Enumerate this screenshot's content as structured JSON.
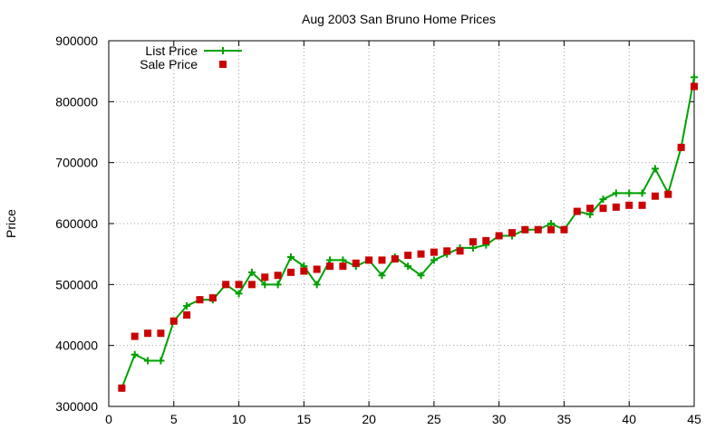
{
  "chart_data": {
    "type": "line",
    "title": "Aug 2003 San Bruno Home Prices",
    "xlabel": "",
    "ylabel": "Price",
    "xlim": [
      0,
      45
    ],
    "ylim": [
      300000,
      900000
    ],
    "xticks": [
      0,
      5,
      10,
      15,
      20,
      25,
      30,
      35,
      40,
      45
    ],
    "yticks": [
      300000,
      400000,
      500000,
      600000,
      700000,
      800000,
      900000
    ],
    "grid": true,
    "legend_position": "top-left",
    "series": [
      {
        "name": "List Price",
        "style": "line-with-plus-markers",
        "color": "#00a000",
        "points": [
          [
            1,
            330000
          ],
          [
            2,
            385000
          ],
          [
            3,
            375000
          ],
          [
            4,
            375000
          ],
          [
            5,
            440000
          ],
          [
            6,
            465000
          ],
          [
            7,
            475000
          ],
          [
            8,
            475000
          ],
          [
            9,
            500000
          ],
          [
            10,
            485000
          ],
          [
            11,
            520000
          ],
          [
            12,
            500000
          ],
          [
            13,
            500000
          ],
          [
            14,
            545000
          ],
          [
            15,
            530000
          ],
          [
            16,
            500000
          ],
          [
            17,
            540000
          ],
          [
            18,
            540000
          ],
          [
            19,
            530000
          ],
          [
            20,
            540000
          ],
          [
            21,
            515000
          ],
          [
            22,
            545000
          ],
          [
            23,
            530000
          ],
          [
            24,
            515000
          ],
          [
            25,
            540000
          ],
          [
            26,
            550000
          ],
          [
            27,
            560000
          ],
          [
            28,
            560000
          ],
          [
            29,
            565000
          ],
          [
            30,
            580000
          ],
          [
            31,
            580000
          ],
          [
            32,
            590000
          ],
          [
            33,
            590000
          ],
          [
            34,
            600000
          ],
          [
            35,
            590000
          ],
          [
            36,
            620000
          ],
          [
            37,
            615000
          ],
          [
            38,
            640000
          ],
          [
            39,
            650000
          ],
          [
            40,
            650000
          ],
          [
            41,
            650000
          ],
          [
            42,
            690000
          ],
          [
            43,
            650000
          ],
          [
            44,
            725000
          ],
          [
            45,
            840000
          ]
        ]
      },
      {
        "name": "Sale Price",
        "style": "square-markers",
        "color": "#cc0000",
        "points": [
          [
            1,
            330000
          ],
          [
            2,
            415000
          ],
          [
            3,
            420000
          ],
          [
            4,
            420000
          ],
          [
            5,
            440000
          ],
          [
            6,
            450000
          ],
          [
            7,
            475000
          ],
          [
            8,
            478000
          ],
          [
            9,
            500000
          ],
          [
            10,
            500000
          ],
          [
            11,
            500000
          ],
          [
            12,
            512000
          ],
          [
            13,
            515000
          ],
          [
            14,
            520000
          ],
          [
            15,
            522000
          ],
          [
            16,
            525000
          ],
          [
            17,
            530000
          ],
          [
            18,
            530000
          ],
          [
            19,
            535000
          ],
          [
            20,
            540000
          ],
          [
            21,
            540000
          ],
          [
            22,
            542000
          ],
          [
            23,
            548000
          ],
          [
            24,
            550000
          ],
          [
            25,
            553000
          ],
          [
            26,
            555000
          ],
          [
            27,
            555000
          ],
          [
            28,
            570000
          ],
          [
            29,
            572000
          ],
          [
            30,
            580000
          ],
          [
            31,
            585000
          ],
          [
            32,
            590000
          ],
          [
            33,
            590000
          ],
          [
            34,
            590000
          ],
          [
            35,
            590000
          ],
          [
            36,
            620000
          ],
          [
            37,
            625000
          ],
          [
            38,
            625000
          ],
          [
            39,
            627000
          ],
          [
            40,
            630000
          ],
          [
            41,
            630000
          ],
          [
            42,
            645000
          ],
          [
            43,
            648000
          ],
          [
            44,
            725000
          ],
          [
            45,
            825000
          ]
        ]
      }
    ]
  }
}
